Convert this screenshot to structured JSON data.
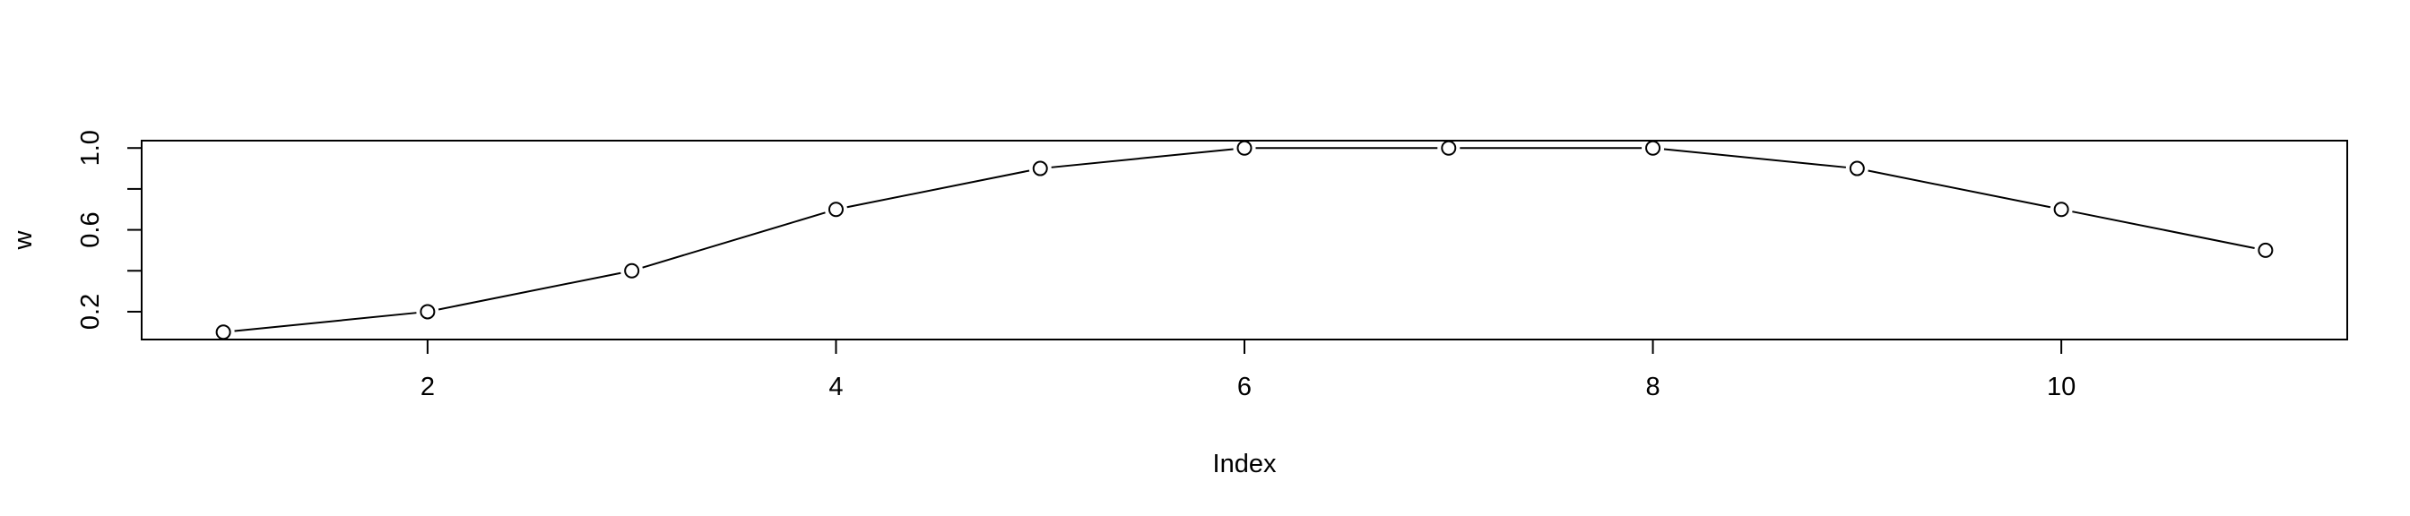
{
  "chart_data": {
    "type": "line",
    "title": "",
    "xlabel": "Index",
    "ylabel": "w",
    "xlim": [
      0.6,
      11.4
    ],
    "ylim": [
      0.064,
      1.036
    ],
    "x_ticks": [
      "2",
      "4",
      "6",
      "8",
      "10"
    ],
    "y_ticks": [
      "0.2",
      "0.6",
      "1.0"
    ],
    "y_minor_ticks": [
      0.4,
      0.8
    ],
    "grid": false,
    "markers": "open-circle",
    "series": [
      {
        "x": [
          1,
          2,
          3,
          4,
          5,
          6,
          7,
          8,
          9,
          10,
          11
        ],
        "values": [
          0.1,
          0.2,
          0.4,
          0.7,
          0.9,
          1.0,
          1.0,
          1.0,
          0.9,
          0.7,
          0.5
        ]
      }
    ]
  }
}
